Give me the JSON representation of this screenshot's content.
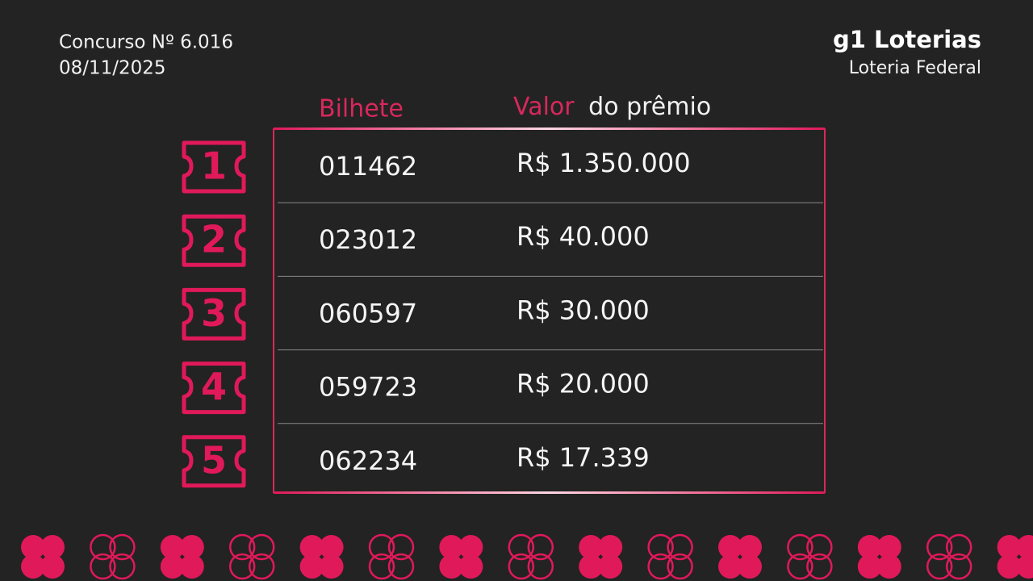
{
  "header": {
    "contest": "Concurso Nº 6.016",
    "date": "08/11/2025",
    "brand": "g1 Loterias",
    "subtitle": "Loteria Federal"
  },
  "table": {
    "columns": {
      "ticket": "Bilhete",
      "prize_highlight": "Valor",
      "prize_rest": "do prêmio"
    },
    "rows": [
      {
        "rank": "1",
        "ticket": "011462",
        "prize": "R$ 1.350.000"
      },
      {
        "rank": "2",
        "ticket": "023012",
        "prize": "R$ 40.000"
      },
      {
        "rank": "3",
        "ticket": "060597",
        "prize": "R$ 30.000"
      },
      {
        "rank": "4",
        "ticket": "059723",
        "prize": "R$ 20.000"
      },
      {
        "rank": "5",
        "ticket": "062234",
        "prize": "R$ 17.339"
      }
    ]
  }
}
